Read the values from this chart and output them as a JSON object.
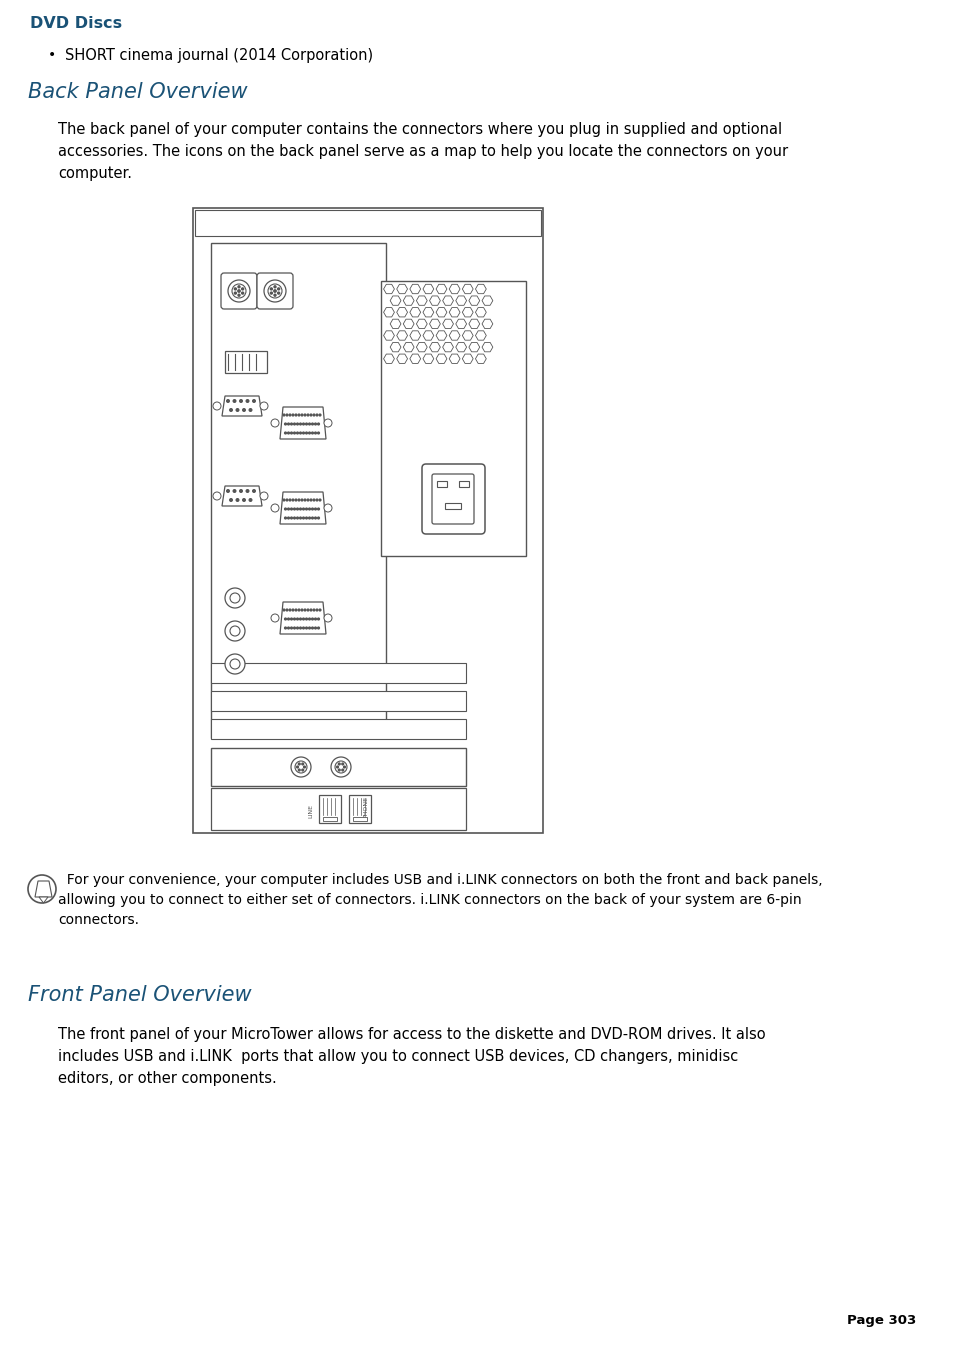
{
  "title_dvd": "DVD Discs",
  "bullet_item": "SHORT cinema journal (2014 Corporation)",
  "section1_title": "Back Panel Overview",
  "section1_para": "The back panel of your computer contains the connectors where you plug in supplied and optional\naccessories. The icons on the back panel serve as a map to help you locate the connectors on your\ncomputer.",
  "note_text": "  For your convenience, your computer includes USB and i.LINK connectors on both the front and back panels,\nallowing you to connect to either set of connectors. i.LINK connectors on the back of your system are 6-pin\nconnectors.",
  "section2_title": "Front Panel Overview",
  "section2_para": "The front panel of your MicroTower allows for access to the diskette and DVD-ROM drives. It also\nincludes USB and i.LINK  ports that allow you to connect USB devices, CD changers, minidisc\neditors, or other components.",
  "page_num": "Page 303",
  "heading_color": "#1a5276",
  "dvd_color": "#1a5276",
  "text_color": "#000000",
  "bg_color": "#ffffff",
  "line_color": "#555555"
}
